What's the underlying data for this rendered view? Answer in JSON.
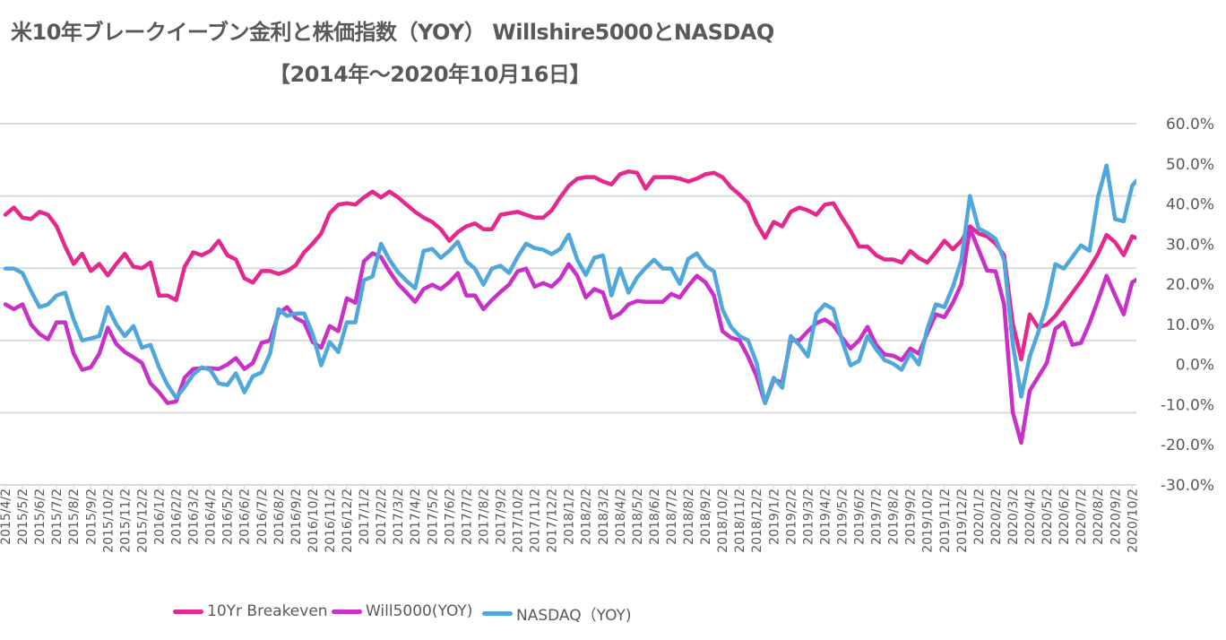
{
  "chart_data": {
    "type": "line",
    "title": "米10年ブレークイーブン金利と株価指数（YOY） Willshire5000とNASDAQ",
    "subtitle": "【2014年～2020年10月16日】",
    "x_start": "2015/4/2",
    "x_step": "half-month",
    "x_end": "2020/10/16",
    "xlabels": [
      "2015/4/2",
      "2015/5/2",
      "2015/6/2",
      "2015/7/2",
      "2015/8/2",
      "2015/9/2",
      "2015/10/2",
      "2015/11/2",
      "2015/12/2",
      "2016/1/2",
      "2016/2/2",
      "2016/3/2",
      "2016/4/2",
      "2016/5/2",
      "2016/6/2",
      "2016/7/2",
      "2016/8/2",
      "2016/9/2",
      "2016/10/2",
      "2016/11/2",
      "2016/12/2",
      "2017/1/2",
      "2017/2/2",
      "2017/3/2",
      "2017/4/2",
      "2017/5/2",
      "2017/6/2",
      "2017/7/2",
      "2017/8/2",
      "2017/9/2",
      "2017/10/2",
      "2017/11/2",
      "2017/12/2",
      "2018/1/2",
      "2018/2/2",
      "2018/3/2",
      "2018/4/2",
      "2018/5/2",
      "2018/6/2",
      "2018/7/2",
      "2018/8/2",
      "2018/9/2",
      "2018/10/2",
      "2018/11/2",
      "2018/12/2",
      "2019/1/2",
      "2019/2/2",
      "2019/3/2",
      "2019/4/2",
      "2019/5/2",
      "2019/6/2",
      "2019/7/2",
      "2019/8/2",
      "2019/9/2",
      "2019/10/2",
      "2019/11/2",
      "2019/12/2",
      "2020/1/2",
      "2020/2/2",
      "2020/3/2",
      "2020/4/2",
      "2020/5/2",
      "2020/6/2",
      "2020/7/2",
      "2020/8/2",
      "2020/9/2",
      "2020/10/2"
    ],
    "y_right": {
      "ylim": [
        -30,
        60
      ],
      "ticks": [
        "60.0%",
        "50.0%",
        "40.0%",
        "30.0%",
        "20.0%",
        "10.0%",
        "0.0%",
        "-10.0%",
        "-20.0%",
        "-30.0%"
      ]
    },
    "y_left_hidden": {
      "ylim": [
        0.0,
        2.5
      ],
      "gridlines": [
        0.0,
        0.5,
        1.0,
        1.5,
        2.0,
        2.5
      ]
    },
    "grid": true,
    "legend_position": "bottom",
    "series": [
      {
        "name": "10Yr Breakeven",
        "axis": "left",
        "color": "#E4288D",
        "values": [
          1.87,
          1.92,
          1.85,
          1.84,
          1.89,
          1.87,
          1.79,
          1.65,
          1.53,
          1.6,
          1.48,
          1.53,
          1.45,
          1.53,
          1.6,
          1.51,
          1.5,
          1.54,
          1.31,
          1.31,
          1.28,
          1.51,
          1.61,
          1.59,
          1.62,
          1.69,
          1.59,
          1.56,
          1.43,
          1.4,
          1.48,
          1.48,
          1.46,
          1.48,
          1.52,
          1.61,
          1.67,
          1.74,
          1.88,
          1.94,
          1.95,
          1.94,
          1.99,
          2.03,
          1.99,
          2.03,
          1.99,
          1.94,
          1.89,
          1.85,
          1.82,
          1.77,
          1.69,
          1.75,
          1.79,
          1.81,
          1.77,
          1.77,
          1.87,
          1.88,
          1.89,
          1.87,
          1.85,
          1.85,
          1.9,
          1.99,
          2.07,
          2.12,
          2.13,
          2.13,
          2.1,
          2.08,
          2.15,
          2.17,
          2.16,
          2.05,
          2.13,
          2.13,
          2.13,
          2.12,
          2.1,
          2.12,
          2.15,
          2.16,
          2.13,
          2.06,
          2.01,
          1.95,
          1.81,
          1.71,
          1.82,
          1.79,
          1.89,
          1.92,
          1.9,
          1.87,
          1.94,
          1.95,
          1.85,
          1.76,
          1.65,
          1.65,
          1.59,
          1.56,
          1.56,
          1.54,
          1.62,
          1.57,
          1.54,
          1.61,
          1.69,
          1.63,
          1.69,
          1.79,
          1.74,
          1.72,
          1.67,
          1.59,
          1.12,
          0.87,
          1.18,
          1.09,
          1.11,
          1.17,
          1.25,
          1.33,
          1.41,
          1.5,
          1.6,
          1.73,
          1.68,
          1.59,
          1.72,
          1.7
        ]
      },
      {
        "name": "Will5000(YOY)",
        "axis": "right",
        "color": "#C830C8",
        "values": [
          15.0,
          13.8,
          15.0,
          10.0,
          7.6,
          6.3,
          10.5,
          10.5,
          2.7,
          -1.3,
          -0.7,
          2.7,
          9.2,
          5.1,
          3.1,
          1.8,
          0.4,
          -4.7,
          -6.9,
          -9.6,
          -9.2,
          -3.3,
          -1.1,
          -0.9,
          -0.9,
          -1.1,
          0.0,
          1.6,
          -1.1,
          0.4,
          5.4,
          6.0,
          12.7,
          14.3,
          11.6,
          10.5,
          5.6,
          4.2,
          9.6,
          8.3,
          16.5,
          15.4,
          25.7,
          27.7,
          26.8,
          23.2,
          20.1,
          17.9,
          15.6,
          18.8,
          19.9,
          18.8,
          20.5,
          22.8,
          17.2,
          17.2,
          13.8,
          16.1,
          18.1,
          19.9,
          23.2,
          23.9,
          19.4,
          20.3,
          19.4,
          21.4,
          25.0,
          22.1,
          16.7,
          18.8,
          17.9,
          11.6,
          12.7,
          15.0,
          15.8,
          15.6,
          15.6,
          15.6,
          17.6,
          16.7,
          19.6,
          22.1,
          20.5,
          17.2,
          8.3,
          6.7,
          6.0,
          2.0,
          -2.9,
          -9.6,
          -3.8,
          -4.5,
          6.0,
          6.0,
          8.3,
          10.3,
          11.2,
          9.8,
          6.7,
          4.0,
          6.0,
          9.4,
          4.9,
          2.5,
          2.2,
          1.1,
          4.0,
          2.7,
          7.8,
          12.5,
          11.8,
          15.4,
          20.1,
          33.9,
          28.6,
          23.4,
          23.2,
          15.0,
          -11.8,
          -19.5,
          -6.5,
          -3.1,
          0.4,
          8.9,
          10.5,
          4.9,
          5.4,
          10.3,
          16.1,
          22.1,
          17.2,
          12.5,
          20.5,
          21.7
        ]
      },
      {
        "name": "NASDAQ（YOY)",
        "axis": "right",
        "color": "#4FA7DB",
        "values": [
          23.9,
          23.9,
          22.8,
          18.3,
          14.3,
          15.0,
          17.2,
          17.9,
          11.2,
          6.0,
          6.5,
          7.1,
          14.3,
          10.0,
          7.1,
          9.6,
          4.2,
          4.9,
          -0.7,
          -5.1,
          -8.3,
          -5.6,
          -2.5,
          -0.7,
          -1.3,
          -4.7,
          -5.1,
          -2.2,
          -6.9,
          -2.9,
          -2.0,
          2.7,
          13.8,
          12.1,
          12.7,
          12.7,
          7.6,
          -0.2,
          5.6,
          3.1,
          10.5,
          10.5,
          21.0,
          21.9,
          30.1,
          26.1,
          23.0,
          20.8,
          19.0,
          28.3,
          28.8,
          26.6,
          28.3,
          30.6,
          25.7,
          23.9,
          19.9,
          23.9,
          24.6,
          22.8,
          26.8,
          30.1,
          29.0,
          28.6,
          27.5,
          28.8,
          32.4,
          26.1,
          22.3,
          26.6,
          27.2,
          17.2,
          23.9,
          17.9,
          21.7,
          24.1,
          26.1,
          23.9,
          23.9,
          20.1,
          26.3,
          27.7,
          24.6,
          23.2,
          13.8,
          9.4,
          7.1,
          6.0,
          0.4,
          -9.6,
          -3.3,
          -5.8,
          7.1,
          4.9,
          2.0,
          12.7,
          15.0,
          13.8,
          6.0,
          -0.2,
          0.9,
          7.1,
          3.8,
          1.1,
          0.2,
          -1.3,
          2.9,
          0.0,
          8.9,
          15.0,
          14.3,
          19.4,
          26.1,
          42.0,
          33.9,
          32.8,
          31.3,
          26.1,
          5.4,
          -8.0,
          2.0,
          8.0,
          15.0,
          25.0,
          23.9,
          26.8,
          29.7,
          28.3,
          41.7,
          49.6,
          36.2,
          35.7,
          44.6,
          46.9
        ]
      }
    ]
  }
}
